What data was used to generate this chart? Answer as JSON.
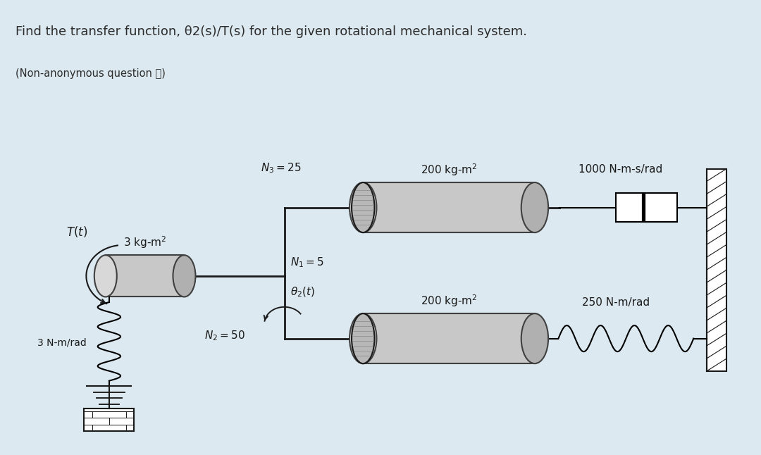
{
  "title": "Find the transfer function, θ2(s)/T(s) for the given rotational mechanical system.",
  "subtitle": "(Non-anonymous question ⓘ)",
  "bg_color": "#dce9f0",
  "diagram_bg": "#ffffff",
  "text_color": "#2c2c2c",
  "N3": "$N_3 = 25$",
  "N1": "$N_1 = 5$",
  "N2": "$N_2 = 50$",
  "J1": "3 kg-m$^2$",
  "J2": "200 kg-m$^2$",
  "J3": "200 kg-m$^2$",
  "K1": "3 N-m/rad",
  "K2": "250 N-m/rad",
  "B1": "1000 N-m-s/rad",
  "Tt": "$T(t)$",
  "theta2": "$\\theta_2(t)$"
}
